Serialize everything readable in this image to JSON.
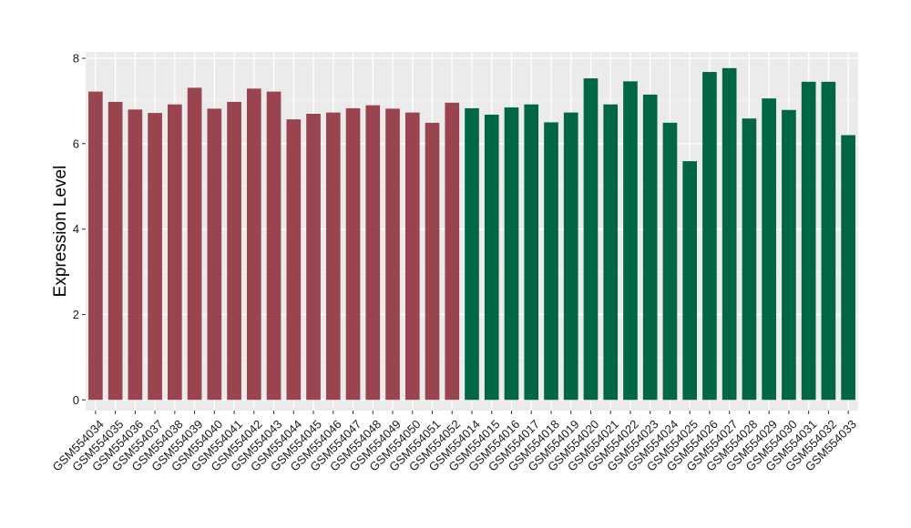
{
  "chart_data": {
    "type": "bar",
    "ylabel": "Expression Level",
    "xlabel": "",
    "ylim": [
      -0.25,
      8.15
    ],
    "yticks": [
      0,
      2,
      4,
      6,
      8
    ],
    "grid": true,
    "categories": [
      "GSM554034",
      "GSM554035",
      "GSM554036",
      "GSM554037",
      "GSM554038",
      "GSM554039",
      "GSM554040",
      "GSM554041",
      "GSM554042",
      "GSM554043",
      "GSM554044",
      "GSM554045",
      "GSM554046",
      "GSM554047",
      "GSM554048",
      "GSM554049",
      "GSM554050",
      "GSM554051",
      "GSM554052",
      "GSM554014",
      "GSM554015",
      "GSM554016",
      "GSM554017",
      "GSM554018",
      "GSM554019",
      "GSM554020",
      "GSM554021",
      "GSM554022",
      "GSM554023",
      "GSM554024",
      "GSM554025",
      "GSM554026",
      "GSM554027",
      "GSM554028",
      "GSM554029",
      "GSM554030",
      "GSM554031",
      "GSM554032",
      "GSM554033"
    ],
    "values": [
      7.22,
      6.98,
      6.8,
      6.72,
      6.92,
      7.31,
      6.82,
      6.98,
      7.29,
      7.22,
      6.57,
      6.7,
      6.73,
      6.83,
      6.9,
      6.82,
      6.73,
      6.49,
      6.96,
      6.83,
      6.68,
      6.85,
      6.92,
      6.5,
      6.73,
      7.53,
      6.92,
      7.46,
      7.15,
      6.49,
      5.59,
      7.68,
      7.77,
      6.59,
      7.06,
      6.79,
      7.45,
      7.45,
      6.2
    ],
    "group_sizes": [
      19,
      20
    ],
    "colors": [
      "#9a4450",
      "#006644"
    ],
    "panel_background": "#ebebeb"
  }
}
